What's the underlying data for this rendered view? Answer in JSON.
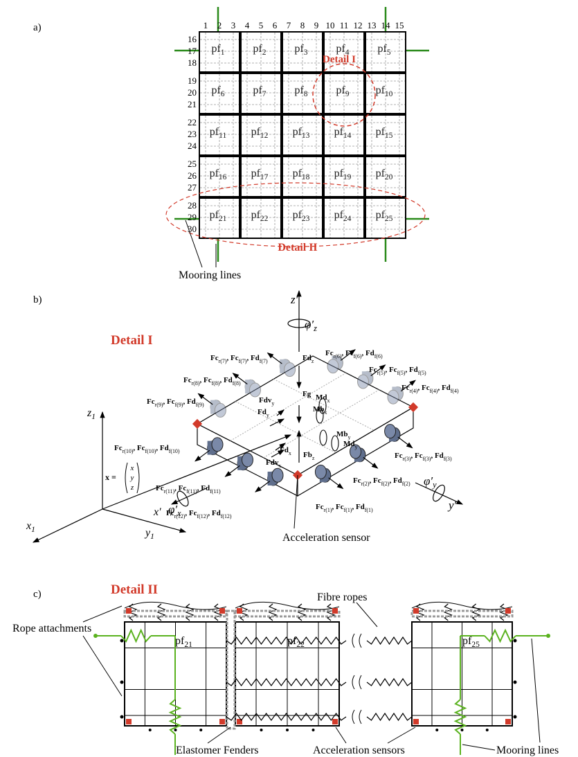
{
  "panel_a": {
    "label": "a)",
    "column_numbers": [
      1,
      2,
      3,
      4,
      5,
      6,
      7,
      8,
      9,
      10,
      11,
      12,
      13,
      14,
      15
    ],
    "row_numbers": [
      16,
      17,
      18,
      19,
      20,
      21,
      22,
      23,
      24,
      25,
      26,
      27,
      28,
      29,
      30
    ],
    "platforms": [
      [
        "pf",
        "1"
      ],
      [
        "pf",
        "2"
      ],
      [
        "pf",
        "3"
      ],
      [
        "pf",
        "4"
      ],
      [
        "pf",
        "5"
      ],
      [
        "pf",
        "6"
      ],
      [
        "pf",
        "7"
      ],
      [
        "pf",
        "8"
      ],
      [
        "pf",
        "9"
      ],
      [
        "pf",
        "10"
      ],
      [
        "pf",
        "11"
      ],
      [
        "pf",
        "12"
      ],
      [
        "pf",
        "13"
      ],
      [
        "pf",
        "14"
      ],
      [
        "pf",
        "15"
      ],
      [
        "pf",
        "16"
      ],
      [
        "pf",
        "17"
      ],
      [
        "pf",
        "18"
      ],
      [
        "pf",
        "19"
      ],
      [
        "pf",
        "20"
      ],
      [
        "pf",
        "21"
      ],
      [
        "pf",
        "22"
      ],
      [
        "pf",
        "23"
      ],
      [
        "pf",
        "24"
      ],
      [
        "pf",
        "25"
      ]
    ],
    "detail_1": "Detail I",
    "detail_2": "Detail II",
    "mooring_lines": "Mooring lines"
  },
  "panel_b": {
    "label": "b)",
    "title": "Detail I",
    "labels": [
      [
        "z′"
      ],
      [
        "φ′",
        "z"
      ],
      [
        "Fd",
        "z"
      ],
      [
        "Fc",
        "r(7)",
        ", Fc",
        "f(7)",
        ", Fd",
        "f(7)"
      ],
      [
        "Fc",
        "r(6)",
        ", Fc",
        "f(6)",
        ", Fd",
        "f(6)"
      ],
      [
        "Fc",
        "r(8)",
        ", Fc",
        "f(8)",
        ", Fd",
        "f(8)"
      ],
      [
        "Fc",
        "r(5)",
        ", Fc",
        "f(5)",
        ", Fd",
        "f(5)"
      ],
      [
        "Fc",
        "r(9)",
        ", Fc",
        "f(9)",
        ", Fd",
        "f(9)"
      ],
      [
        "Fc",
        "r(4)",
        ", Fc",
        "f(4)",
        ", Fd",
        "f(4)"
      ],
      [
        "Fg"
      ],
      [
        "Md",
        "x"
      ],
      [
        "Mb",
        "x"
      ],
      [
        "Fdv",
        "y"
      ],
      [
        "Fd",
        "y"
      ],
      [
        "Mb",
        "y"
      ],
      [
        "Md",
        "y"
      ],
      [
        "Fd",
        "x"
      ],
      [
        "Fdv",
        "x"
      ],
      [
        "Fb",
        "z"
      ],
      [
        "Fc",
        "r(10)",
        ", Fc",
        "f(10)",
        ", Fd",
        "f(10)"
      ],
      [
        "Fc",
        "r(3)",
        ", Fc",
        "f(3)",
        ", Fd",
        "f(3)"
      ],
      [
        "Fc",
        "r(2)",
        ", Fc",
        "f(2)",
        ", Fd",
        "f(2)"
      ],
      [
        "Fc",
        "r(11)",
        ", Fc",
        "f(11)",
        ", Fd",
        "f(11)"
      ],
      [
        "Fc",
        "r(1)",
        ", Fc",
        "f(1)",
        ", Fd",
        "f(1)"
      ],
      [
        "Fc",
        "r(12)",
        ", Fc",
        "f(12)",
        ", Fd",
        "f(12)"
      ],
      [
        "z",
        "1"
      ],
      [
        "x",
        "1"
      ],
      [
        "y",
        "1"
      ],
      [
        "x′"
      ],
      [
        "φ′",
        "x"
      ],
      [
        "φ′",
        "y"
      ],
      [
        "y′"
      ]
    ],
    "position_vector": {
      "lhs": "x =",
      "components": [
        "x",
        "y",
        "z"
      ]
    },
    "acceleration_sensor": "Acceleration sensor"
  },
  "panel_c": {
    "label": "c)",
    "title": "Detail II",
    "fibre_ropes": "Fibre ropes",
    "rope_attachments": "Rope attachments",
    "platforms": [
      [
        "pf",
        "21"
      ],
      [
        "pf",
        "22"
      ],
      [
        "pf",
        "25"
      ]
    ],
    "elastomer_fenders": "Elastomer Fenders",
    "acceleration_sensors": "Acceleration sensors",
    "mooring_lines": "Mooring lines"
  }
}
